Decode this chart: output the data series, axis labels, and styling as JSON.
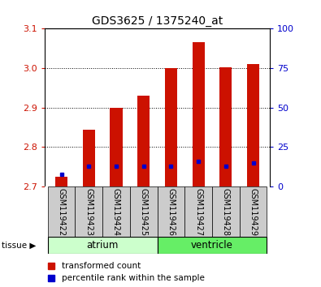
{
  "title": "GDS3625 / 1375240_at",
  "samples": [
    "GSM119422",
    "GSM119423",
    "GSM119424",
    "GSM119425",
    "GSM119426",
    "GSM119427",
    "GSM119428",
    "GSM119429"
  ],
  "transformed_count": [
    2.725,
    2.845,
    2.9,
    2.93,
    3.0,
    3.065,
    3.003,
    3.01
  ],
  "percentile_rank": [
    2.732,
    2.752,
    2.752,
    2.751,
    2.751,
    2.764,
    2.752,
    2.76
  ],
  "bar_bottom": 2.7,
  "ylim": [
    2.7,
    3.1
  ],
  "yticks_left": [
    2.7,
    2.8,
    2.9,
    3.0,
    3.1
  ],
  "yticks_right": [
    0,
    25,
    50,
    75,
    100
  ],
  "yright_lim": [
    0,
    100
  ],
  "tissues": [
    "atrium",
    "atrium",
    "atrium",
    "atrium",
    "ventricle",
    "ventricle",
    "ventricle",
    "ventricle"
  ],
  "atrium_color": "#ccffcc",
  "ventricle_color": "#66ee66",
  "bar_color": "#cc1100",
  "percentile_color": "#0000cc",
  "bg_color": "#cccccc",
  "plot_bg": "#ffffff",
  "left_tick_color": "#cc1100",
  "right_tick_color": "#0000cc",
  "bar_width": 0.45
}
